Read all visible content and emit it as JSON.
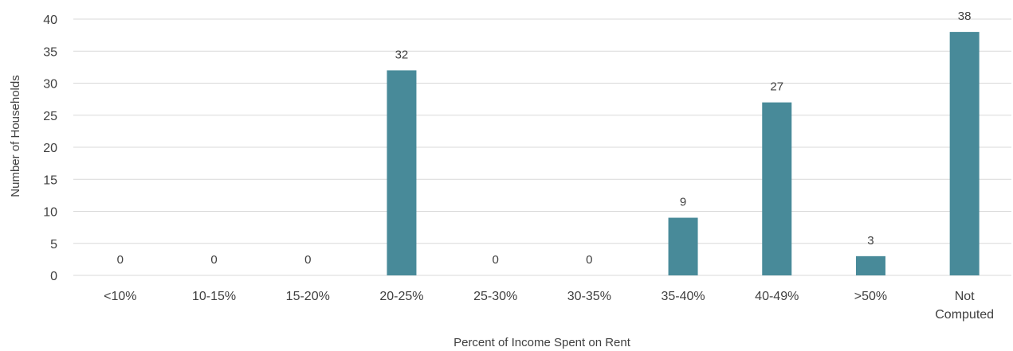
{
  "chart_data": {
    "type": "bar",
    "title": "",
    "xlabel": "Percent of Income Spent on Rent",
    "ylabel": "Number of Households",
    "ylim": [
      0,
      40
    ],
    "yticks": [
      0,
      5,
      10,
      15,
      20,
      25,
      30,
      35,
      40
    ],
    "grid": true,
    "legend": "none",
    "categories": [
      [
        "<10%"
      ],
      [
        "10-15%"
      ],
      [
        "15-20%"
      ],
      [
        "20-25%"
      ],
      [
        "25-30%"
      ],
      [
        "30-35%"
      ],
      [
        "35-40%"
      ],
      [
        "40-49%"
      ],
      [
        ">50%"
      ],
      [
        "Not",
        "Computed"
      ]
    ],
    "values": [
      0,
      0,
      0,
      32,
      0,
      0,
      9,
      27,
      3,
      38
    ],
    "data_labels": [
      "0",
      "0",
      "0",
      "32",
      "0",
      "0",
      "9",
      "27",
      "3",
      "38"
    ],
    "colors": {
      "bar": "#488a99",
      "grid": "#d9d9d9",
      "text": "#404040"
    }
  }
}
